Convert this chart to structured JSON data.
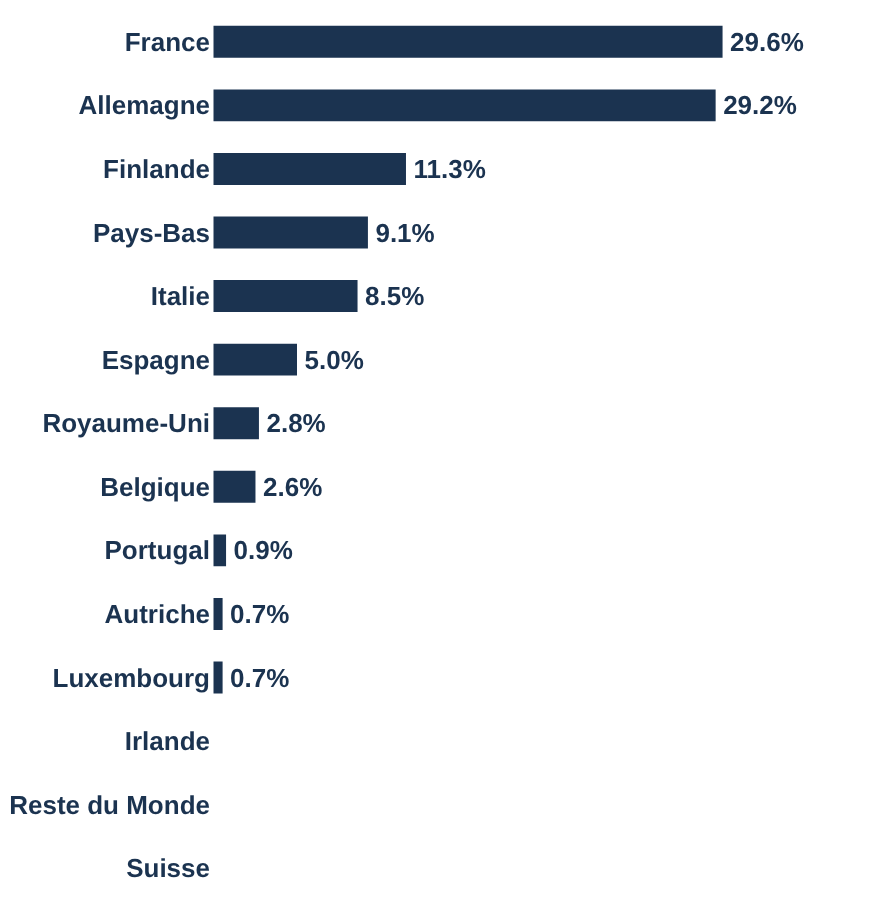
{
  "chart_data": {
    "type": "bar",
    "orientation": "horizontal",
    "categories": [
      "France",
      "Allemagne",
      "Finlande",
      "Pays-Bas",
      "Italie",
      "Espagne",
      "Royaume-Uni",
      "Belgique",
      "Portugal",
      "Autriche",
      "Luxembourg",
      "Irlande",
      "Reste du Monde",
      "Suisse"
    ],
    "values": [
      29.6,
      29.2,
      11.3,
      9.1,
      8.5,
      5.0,
      2.8,
      2.6,
      0.9,
      0.7,
      0.7,
      null,
      null,
      null
    ],
    "value_labels": [
      "29.6%",
      "29.2%",
      "11.3%",
      "9.1%",
      "8.5%",
      "5.0%",
      "2.8%",
      "2.6%",
      "0.9%",
      "0.7%",
      "0.7%",
      null,
      null,
      null
    ],
    "color": "#1b3350",
    "legend": false,
    "tick_labels": "y"
  }
}
